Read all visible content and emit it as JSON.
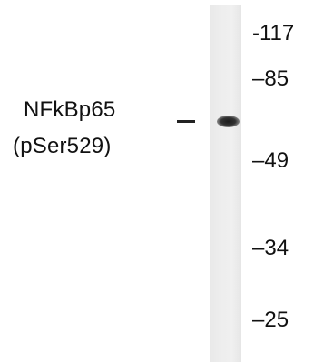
{
  "protein_label": {
    "line1": "NFkBp65",
    "line2": "(pSer529)"
  },
  "markers": [
    {
      "label": "-117"
    },
    {
      "label": "–85"
    },
    {
      "label": "–49"
    },
    {
      "label": "–34"
    },
    {
      "label": "–25"
    }
  ]
}
